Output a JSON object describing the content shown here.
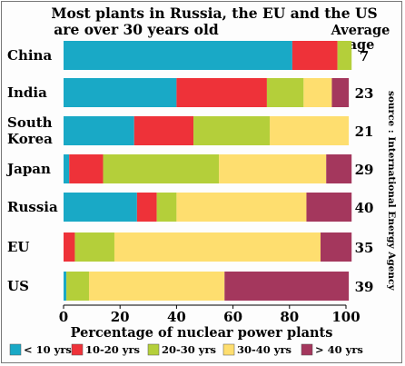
{
  "chart_data": {
    "type": "bar",
    "orientation": "horizontal",
    "stacked": true,
    "title": "Most plants in Russia, the EU and the US are over 30 years old",
    "title_lines": [
      "Most plants in Russia, the EU and the US",
      "are over 30 years old"
    ],
    "xlabel": "Percentage of nuclear power plants",
    "xlim": [
      0,
      100
    ],
    "xticks": [
      "0",
      "20",
      "40",
      "60",
      "80",
      "100"
    ],
    "categories": [
      "China",
      "India",
      "South Korea",
      "Japan",
      "Russia",
      "EU",
      "US"
    ],
    "category_lines": [
      [
        "China"
      ],
      [
        "India"
      ],
      [
        "South",
        "Korea"
      ],
      [
        "Japan"
      ],
      [
        "Russia"
      ],
      [
        "EU"
      ],
      [
        "US"
      ]
    ],
    "series": [
      {
        "name": "< 10 yrs",
        "color": "#19a9c6",
        "values": [
          81,
          40,
          25,
          2,
          26,
          0,
          1
        ]
      },
      {
        "name": "10-20 yrs",
        "color": "#ee3239",
        "values": [
          16,
          32,
          21,
          12,
          7,
          4,
          0
        ]
      },
      {
        "name": "20-30 yrs",
        "color": "#b4cf3a",
        "values": [
          5,
          13,
          27,
          41,
          7,
          14,
          8
        ]
      },
      {
        "name": "30-40 yrs",
        "color": "#fede6f",
        "values": [
          0,
          10,
          28,
          38,
          46,
          73,
          48
        ]
      },
      {
        "name": "> 40 yrs",
        "color": "#a4375d",
        "values": [
          0,
          6,
          0,
          9,
          16,
          11,
          44
        ]
      }
    ],
    "average_age_header": [
      "Average",
      "age"
    ],
    "average_age": [
      "7",
      "23",
      "21",
      "29",
      "40",
      "35",
      "39"
    ],
    "source": "source : International Energy Agency",
    "legend_position": "bottom"
  }
}
